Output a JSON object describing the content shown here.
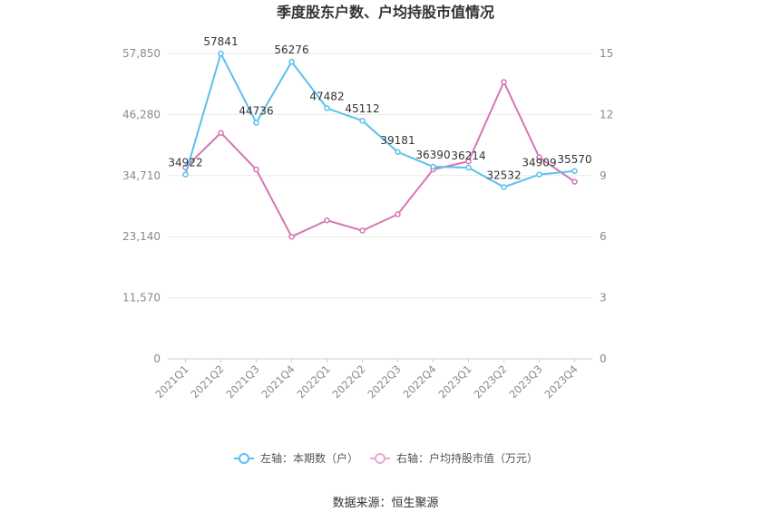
{
  "chart_data": {
    "type": "line",
    "title": "季度股东户数、户均持股市值情况",
    "categories": [
      "2021Q1",
      "2021Q2",
      "2021Q3",
      "2021Q4",
      "2022Q1",
      "2022Q2",
      "2022Q3",
      "2022Q4",
      "2023Q1",
      "2023Q2",
      "2023Q3",
      "2023Q4"
    ],
    "left_axis": {
      "min": 0,
      "max": 57850,
      "ticks": [
        0,
        11570,
        23140,
        34710,
        46280,
        57850
      ],
      "tick_labels": [
        "0",
        "11,570",
        "23,140",
        "34,710",
        "46,280",
        "57,850"
      ]
    },
    "right_axis": {
      "min": 0,
      "max": 15,
      "ticks": [
        0,
        3,
        6,
        9,
        12,
        15
      ],
      "tick_labels": [
        "0",
        "3",
        "6",
        "9",
        "12",
        "15"
      ]
    },
    "series": [
      {
        "name": "左轴：本期数（户）",
        "axis": "left",
        "color": "#5bc0eb",
        "values": [
          34922,
          57841,
          44736,
          56276,
          47482,
          45112,
          39181,
          36390,
          36214,
          32532,
          34909,
          35570
        ],
        "labels": [
          "34922",
          "57841",
          "44736",
          "56276",
          "47482",
          "45112",
          "39181",
          "36390",
          "36214",
          "32532",
          "34909",
          "35570"
        ]
      },
      {
        "name": "右轴：户均持股市值（万元）",
        "axis": "right",
        "color": "#d775b4",
        "values": [
          9.4,
          11.1,
          9.3,
          6.0,
          6.8,
          6.3,
          7.1,
          9.3,
          9.7,
          13.6,
          9.9,
          8.7
        ]
      }
    ],
    "legend_position": "bottom-center",
    "grid": true
  },
  "source": "数据来源：恒生聚源"
}
